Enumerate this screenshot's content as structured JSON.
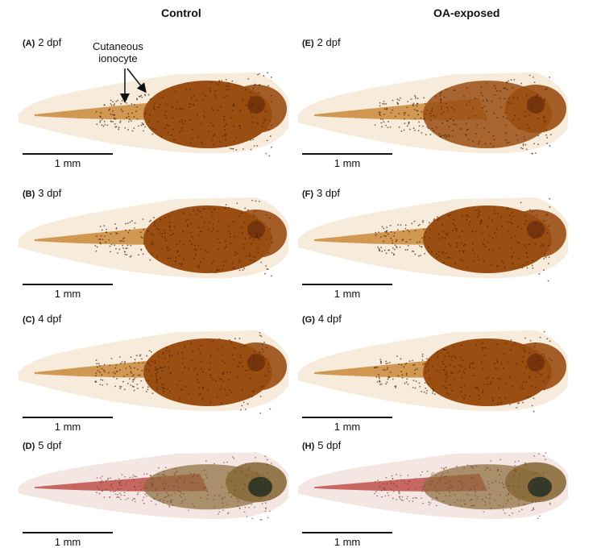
{
  "columns": [
    {
      "title": "Control"
    },
    {
      "title": "OA-exposed"
    }
  ],
  "panels": [
    {
      "letter": "(A)",
      "stage": "2 dpf",
      "scale": "1 mm"
    },
    {
      "letter": "(B)",
      "stage": "3 dpf",
      "scale": "1 mm"
    },
    {
      "letter": "(C)",
      "stage": "4 dpf",
      "scale": "1 mm"
    },
    {
      "letter": "(D)",
      "stage": "5 dpf",
      "scale": "1 mm"
    },
    {
      "letter": "(E)",
      "stage": "2 dpf",
      "scale": "1 mm"
    },
    {
      "letter": "(F)",
      "stage": "3 dpf",
      "scale": "1 mm"
    },
    {
      "letter": "(G)",
      "stage": "4 dpf",
      "scale": "1 mm"
    },
    {
      "letter": "(H)",
      "stage": "5 dpf",
      "scale": "1 mm"
    }
  ],
  "annotation": {
    "line1": "Cutaneous",
    "line2": "ionocyte"
  },
  "colors": {
    "stain": "#9a4e12",
    "yolk": "#c98a3a",
    "fin": "#f6ead8",
    "late_body": "#8a6a3a",
    "late_fin": "#f3e4e0"
  }
}
